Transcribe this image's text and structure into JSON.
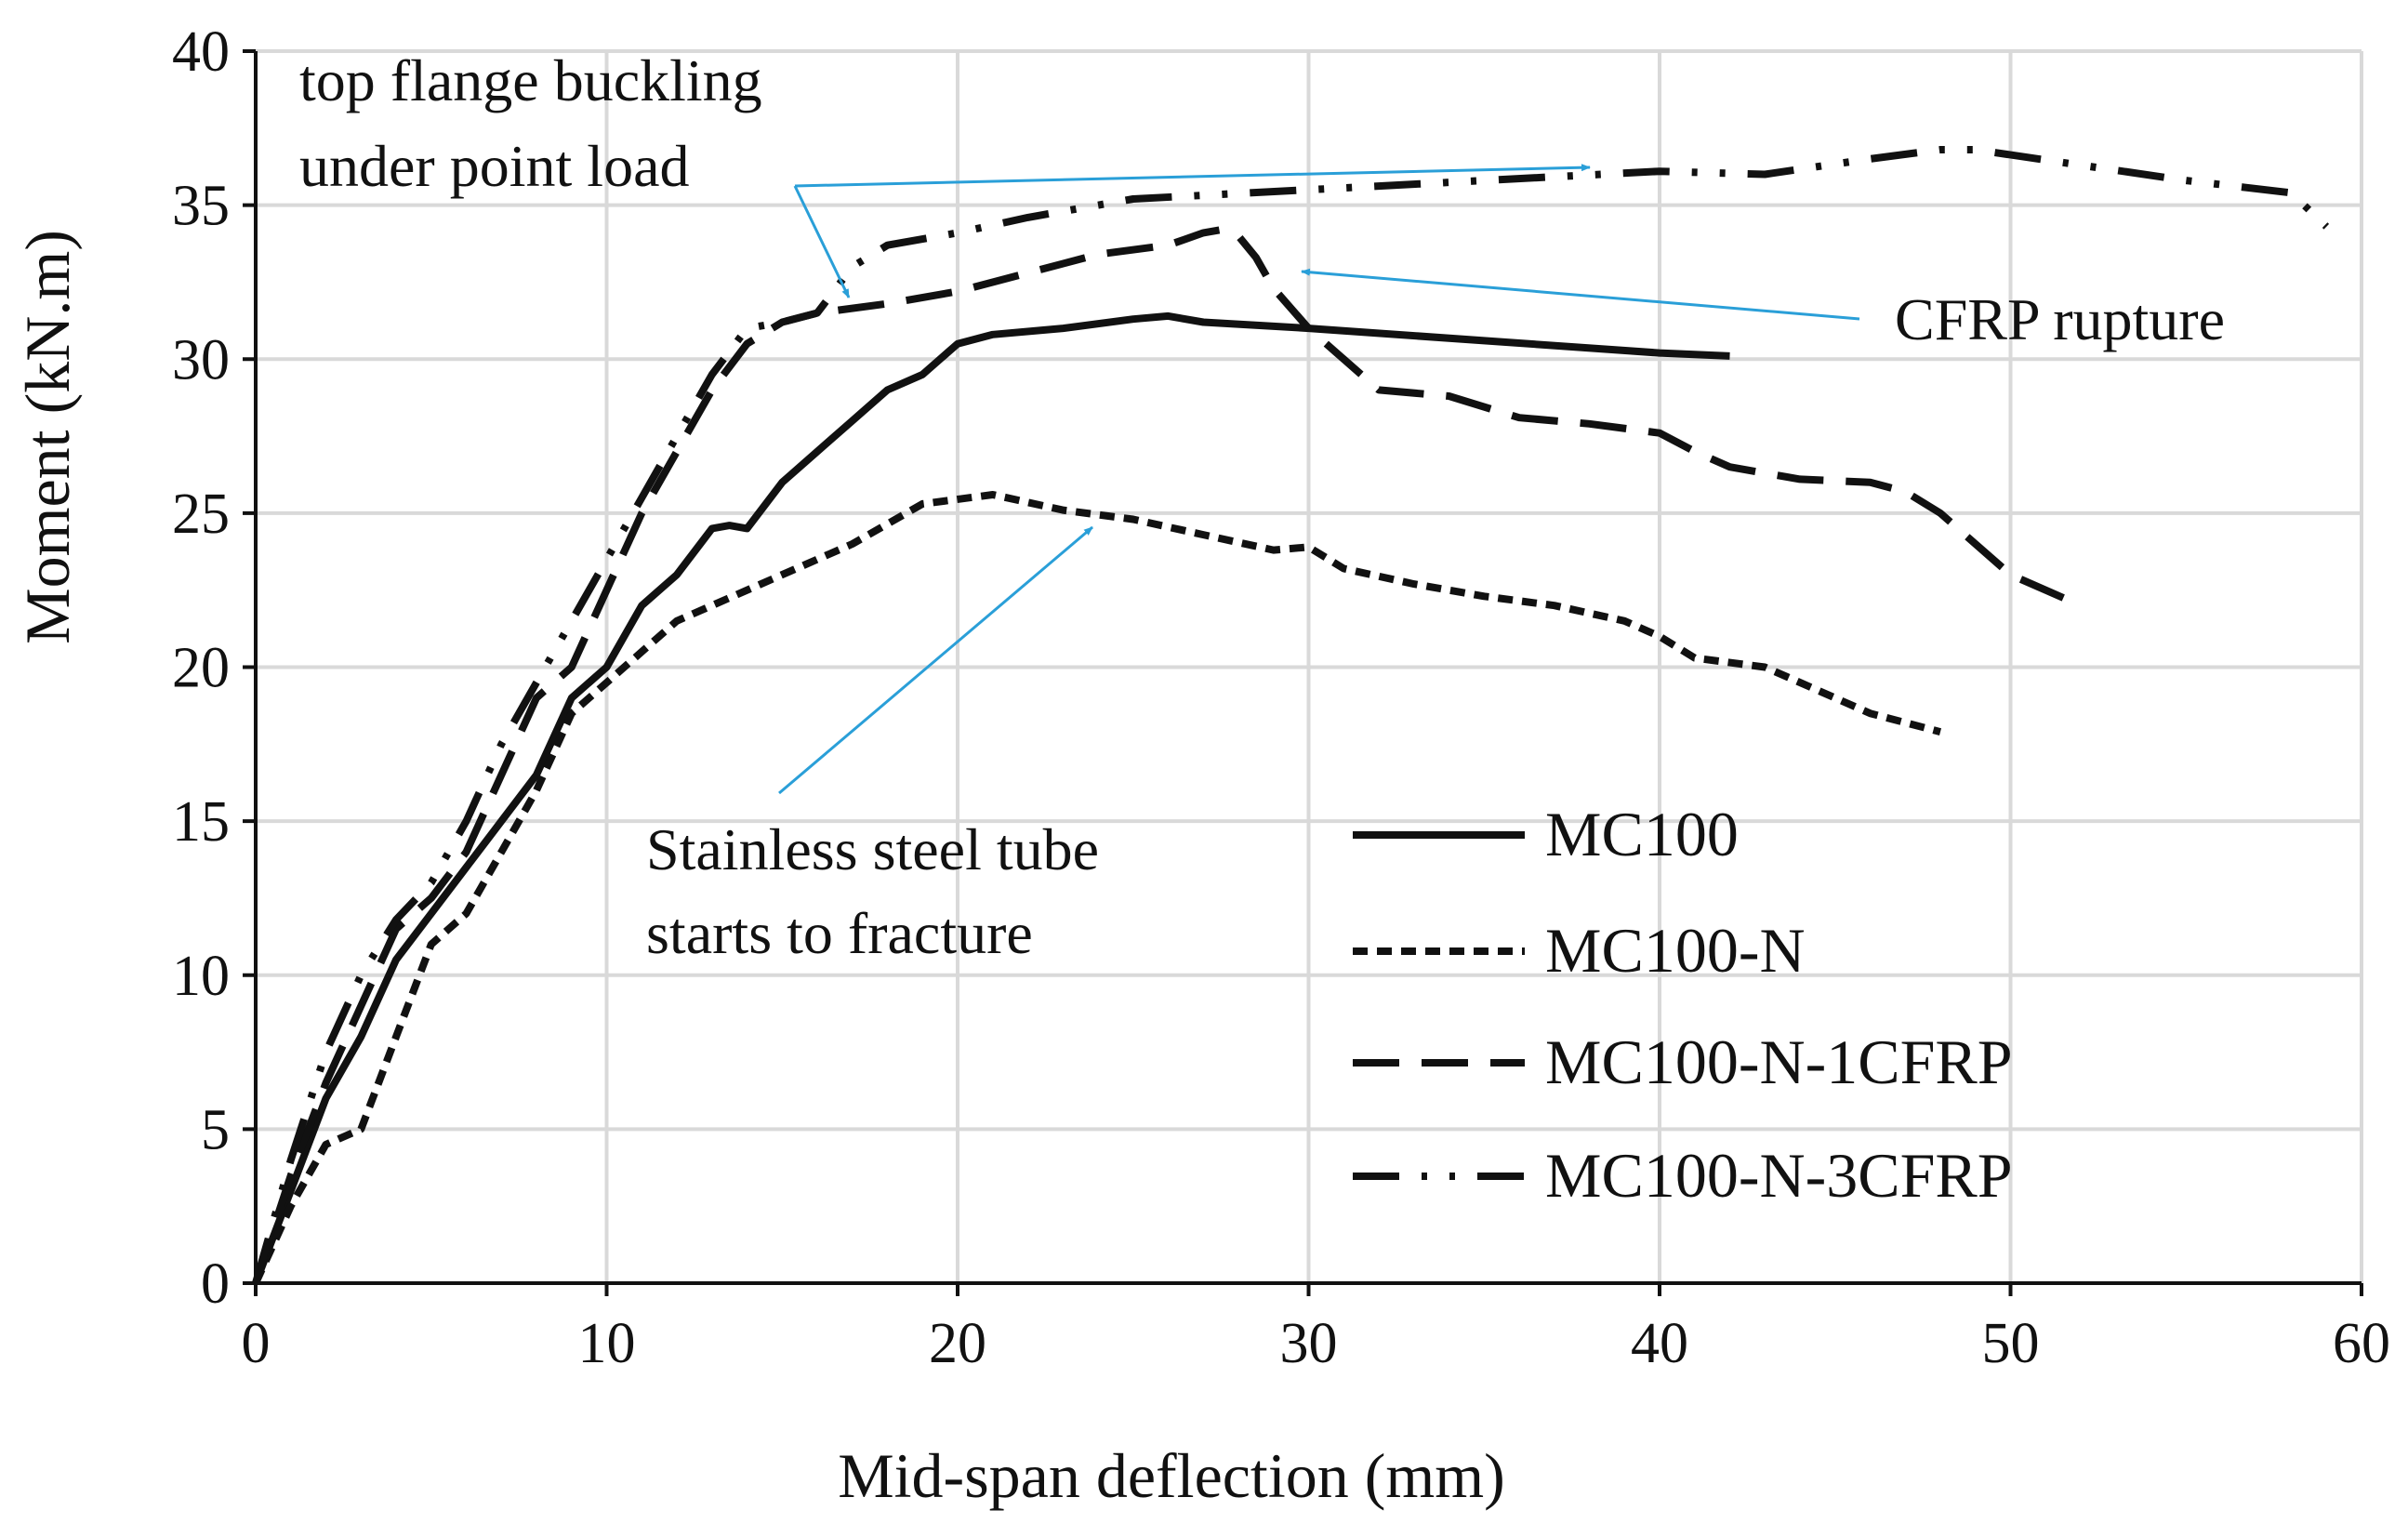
{
  "chart_data": {
    "type": "line",
    "title": "",
    "xlabel": "Mid-span deflection (mm)",
    "ylabel": "Moment (kN.m)",
    "xlim": [
      0,
      60
    ],
    "ylim": [
      0,
      40
    ],
    "xticks": [
      0,
      10,
      20,
      30,
      40,
      50,
      60
    ],
    "yticks": [
      0,
      5,
      10,
      15,
      20,
      25,
      30,
      35,
      40
    ],
    "grid": true,
    "legend_position": "lower-right",
    "series": [
      {
        "name": "MC100",
        "style": "solid",
        "x": [
          0,
          1,
          2,
          3,
          4,
          5,
          6,
          7,
          8,
          9,
          10,
          11,
          12,
          13,
          13.5,
          14,
          15,
          16,
          17,
          18,
          19,
          20,
          21,
          23,
          25,
          26,
          27,
          30,
          35,
          40,
          42
        ],
        "y": [
          0,
          3,
          6,
          8,
          10.5,
          12,
          13.5,
          15,
          16.5,
          19,
          20,
          22,
          23,
          24.5,
          24.6,
          24.5,
          26,
          27,
          28,
          29,
          29.5,
          30.5,
          30.8,
          31,
          31.3,
          31.4,
          31.2,
          31,
          30.6,
          30.2,
          30.1
        ]
      },
      {
        "name": "MC100-N",
        "style": "dotted",
        "x": [
          0,
          1,
          2,
          3,
          4,
          5,
          6,
          7,
          8,
          9,
          10,
          11,
          12,
          13,
          15,
          17,
          19,
          21,
          23,
          25,
          27,
          29,
          30,
          31,
          33,
          35,
          37,
          39,
          40,
          41,
          43,
          45,
          46,
          48
        ],
        "y": [
          0,
          2.5,
          4.5,
          5,
          8,
          11,
          12,
          14,
          16,
          18.5,
          19.5,
          20.5,
          21.5,
          22,
          23,
          24,
          25.3,
          25.6,
          25.1,
          24.8,
          24.3,
          23.8,
          23.9,
          23.2,
          22.7,
          22.3,
          22,
          21.5,
          21,
          20.3,
          20,
          19,
          18.5,
          17.9
        ]
      },
      {
        "name": "MC100-N-1CFRP",
        "style": "long-dash",
        "x": [
          0,
          1,
          2,
          3,
          4,
          5,
          6,
          7,
          8,
          9,
          10,
          11,
          12,
          13,
          14,
          15,
          16,
          18,
          20,
          22,
          24,
          26,
          27,
          27.5,
          28,
          28.5,
          29,
          30,
          31,
          32,
          34,
          36,
          38,
          40,
          41,
          42,
          44,
          46,
          47,
          48,
          50,
          52
        ],
        "y": [
          0,
          3.5,
          6.5,
          9,
          11.5,
          12.5,
          14,
          16.5,
          19,
          20,
          22.5,
          25,
          27,
          29,
          30.5,
          31.2,
          31.5,
          31.8,
          32.2,
          32.8,
          33.4,
          33.7,
          34.1,
          34.2,
          34,
          33.3,
          32.3,
          31,
          30,
          29,
          28.8,
          28.1,
          27.9,
          27.6,
          27,
          26.5,
          26.1,
          26,
          25.7,
          25,
          23,
          22
        ]
      },
      {
        "name": "MC100-N-3CFRP",
        "style": "dash-dot-dot",
        "x": [
          0,
          1,
          2,
          3,
          4,
          5,
          6,
          7,
          8,
          9,
          10,
          11,
          12,
          13,
          14,
          15,
          16,
          17,
          18,
          20,
          22,
          25,
          30,
          35,
          40,
          43,
          46,
          48,
          49,
          52,
          55,
          58,
          59
        ],
        "y": [
          0,
          4,
          7.5,
          10,
          11.8,
          13,
          15,
          17.5,
          19.5,
          21.5,
          23.5,
          25.5,
          27.5,
          29.5,
          31,
          31.2,
          31.5,
          33,
          33.7,
          34.1,
          34.6,
          35.2,
          35.5,
          35.8,
          36.1,
          36,
          36.5,
          36.8,
          36.8,
          36.3,
          35.8,
          35.4,
          34.3
        ]
      }
    ],
    "annotations": [
      {
        "lines": [
          "top flange buckling",
          "under point load"
        ]
      },
      {
        "lines": [
          "CFRP rupture"
        ]
      },
      {
        "lines": [
          "Stainless steel tube",
          "starts to fracture"
        ]
      }
    ]
  }
}
